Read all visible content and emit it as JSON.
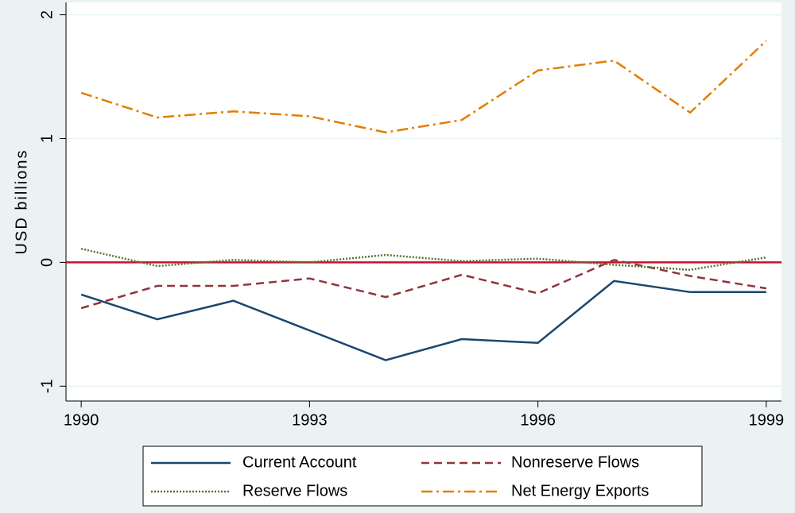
{
  "chart_data": {
    "type": "line",
    "x": [
      1990,
      1991,
      1992,
      1993,
      1994,
      1995,
      1996,
      1997,
      1998,
      1999
    ],
    "xlim": [
      1989.8,
      1999.2
    ],
    "xticks": [
      1990,
      1993,
      1996,
      1999
    ],
    "ylim": [
      -1.12,
      2.1
    ],
    "yticks": [
      -1,
      0,
      1,
      2
    ],
    "y_label": "USD billions",
    "grid": true,
    "reference_line": 0,
    "reference_color": "#c8102e",
    "series": [
      {
        "name": "Current Account",
        "color": "#1a476f",
        "values": [
          -0.26,
          -0.46,
          -0.31,
          -0.55,
          -0.79,
          -0.62,
          -0.65,
          -0.15,
          -0.24,
          -0.24
        ]
      },
      {
        "name": "Nonreserve Flows",
        "color": "#90353b",
        "values": [
          -0.37,
          -0.19,
          -0.19,
          -0.13,
          -0.28,
          -0.1,
          -0.25,
          0.02,
          -0.11,
          -0.21
        ]
      },
      {
        "name": "Reserve Flows",
        "color": "#55752f",
        "values": [
          0.11,
          -0.03,
          0.02,
          0,
          0.06,
          0.01,
          0.03,
          -0.02,
          -0.06,
          0.04
        ]
      },
      {
        "name": "Net Energy Exports",
        "color": "#e37e00",
        "values": [
          1.37,
          1.17,
          1.22,
          1.18,
          1.05,
          1.15,
          1.55,
          1.63,
          1.21,
          1.79
        ]
      }
    ]
  }
}
